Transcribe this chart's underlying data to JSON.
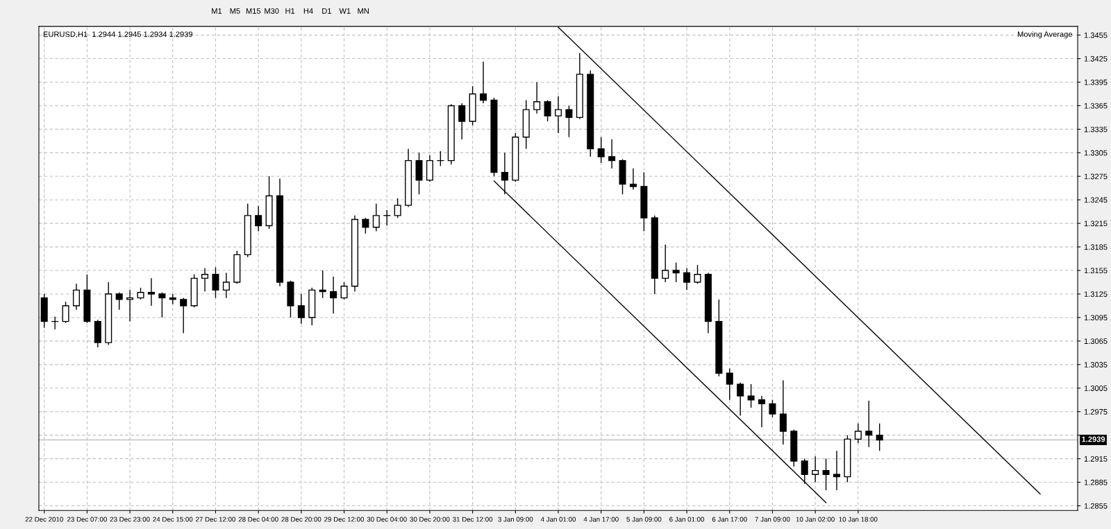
{
  "chart_data": {
    "type": "candlestick",
    "title": "EURUSD,H1  1.2944 1.2945 1.2934 1.2939",
    "annotations": [
      "Moving Average",
      "M1",
      "M5",
      "M15",
      "M30",
      "H1",
      "H4",
      "D1",
      "W1",
      "MN"
    ],
    "categories": [
      "22 Dec 2010",
      null,
      null,
      null,
      "23 Dec 07:00",
      null,
      null,
      null,
      "23 Dec 23:00",
      null,
      null,
      null,
      "24 Dec 15:00",
      null,
      null,
      null,
      "27 Dec 12:00",
      null,
      null,
      null,
      "28 Dec 04:00",
      null,
      null,
      null,
      "28 Dec 20:00",
      null,
      null,
      null,
      "29 Dec 12:00",
      null,
      null,
      null,
      "30 Dec 04:00",
      null,
      null,
      null,
      "30 Dec 20:00",
      null,
      null,
      null,
      "31 Dec 12:00",
      null,
      null,
      null,
      "3 Jan 09:00",
      null,
      null,
      null,
      "4 Jan 01:00",
      null,
      null,
      null,
      "4 Jan 17:00",
      null,
      null,
      null,
      "5 Jan 09:00",
      null,
      null,
      null,
      "6 Jan 01:00",
      null,
      null,
      null,
      "6 Jan 17:00",
      null,
      null,
      null,
      "7 Jan 09:00",
      null,
      null,
      null,
      "10 Jan 02:00",
      null,
      null,
      null,
      "10 Jan 18:00",
      null,
      null,
      null,
      null,
      null,
      null,
      null,
      null,
      null,
      null,
      null,
      null,
      null,
      null,
      null,
      null,
      null,
      null,
      null,
      null
    ],
    "series": [
      {
        "color": "#000000",
        "ohlc": [
          [
            1.312,
            1.3125,
            1.3082,
            1.309
          ],
          [
            1.309,
            1.3096,
            1.308,
            1.309
          ],
          [
            1.309,
            1.3115,
            1.3088,
            1.311
          ],
          [
            1.311,
            1.3138,
            1.3105,
            1.313
          ],
          [
            1.313,
            1.315,
            1.3088,
            1.309
          ],
          [
            1.309,
            1.3092,
            1.3057,
            1.3063
          ],
          [
            1.3063,
            1.314,
            1.306,
            1.3125
          ],
          [
            1.3125,
            1.3127,
            1.3105,
            1.3118
          ],
          [
            1.3118,
            1.313,
            1.309,
            1.312
          ],
          [
            1.312,
            1.3133,
            1.3118,
            1.3127
          ],
          [
            1.3127,
            1.3145,
            1.311,
            1.3125
          ],
          [
            1.3125,
            1.3127,
            1.3095,
            1.312
          ],
          [
            1.312,
            1.3125,
            1.3112,
            1.3118
          ],
          [
            1.3118,
            1.312,
            1.3075,
            1.311
          ],
          [
            1.311,
            1.315,
            1.3108,
            1.3145
          ],
          [
            1.3145,
            1.3158,
            1.3128,
            1.315
          ],
          [
            1.315,
            1.3159,
            1.312,
            1.313
          ],
          [
            1.313,
            1.3152,
            1.312,
            1.314
          ],
          [
            1.314,
            1.318,
            1.3138,
            1.3175
          ],
          [
            1.3175,
            1.324,
            1.3172,
            1.3225
          ],
          [
            1.3225,
            1.3237,
            1.3205,
            1.3212
          ],
          [
            1.3212,
            1.3275,
            1.3208,
            1.325
          ],
          [
            1.325,
            1.3272,
            1.3135,
            1.314
          ],
          [
            1.314,
            1.3142,
            1.3095,
            1.311
          ],
          [
            1.311,
            1.3125,
            1.3087,
            1.3095
          ],
          [
            1.3095,
            1.3133,
            1.3085,
            1.313
          ],
          [
            1.313,
            1.3155,
            1.312,
            1.3128
          ],
          [
            1.3128,
            1.3147,
            1.31,
            1.312
          ],
          [
            1.312,
            1.314,
            1.3118,
            1.3135
          ],
          [
            1.3135,
            1.3225,
            1.3128,
            1.322
          ],
          [
            1.322,
            1.3222,
            1.3202,
            1.321
          ],
          [
            1.321,
            1.324,
            1.3205,
            1.3225
          ],
          [
            1.3225,
            1.3232,
            1.3212,
            1.3225
          ],
          [
            1.3225,
            1.3247,
            1.3222,
            1.3238
          ],
          [
            1.3238,
            1.331,
            1.3236,
            1.3295
          ],
          [
            1.3295,
            1.3305,
            1.3252,
            1.327
          ],
          [
            1.327,
            1.3302,
            1.3268,
            1.3295
          ],
          [
            1.3295,
            1.3307,
            1.3288,
            1.3295
          ],
          [
            1.3295,
            1.3367,
            1.329,
            1.3365
          ],
          [
            1.3365,
            1.3368,
            1.3322,
            1.3345
          ],
          [
            1.3345,
            1.339,
            1.334,
            1.338
          ],
          [
            1.338,
            1.3421,
            1.3368,
            1.3372
          ],
          [
            1.3372,
            1.3375,
            1.3275,
            1.328
          ],
          [
            1.328,
            1.3305,
            1.3252,
            1.327
          ],
          [
            1.327,
            1.333,
            1.3268,
            1.3325
          ],
          [
            1.3325,
            1.3372,
            1.331,
            1.336
          ],
          [
            1.336,
            1.3395,
            1.3355,
            1.337
          ],
          [
            1.337,
            1.3372,
            1.3345,
            1.3352
          ],
          [
            1.3352,
            1.3377,
            1.333,
            1.336
          ],
          [
            1.336,
            1.3365,
            1.3325,
            1.335
          ],
          [
            1.335,
            1.3432,
            1.3348,
            1.3405
          ],
          [
            1.3405,
            1.341,
            1.33,
            1.331
          ],
          [
            1.331,
            1.3325,
            1.3292,
            1.33
          ],
          [
            1.33,
            1.3322,
            1.3285,
            1.3295
          ],
          [
            1.3295,
            1.3297,
            1.3252,
            1.3265
          ],
          [
            1.3265,
            1.3285,
            1.3258,
            1.3262
          ],
          [
            1.3262,
            1.328,
            1.3205,
            1.3222
          ],
          [
            1.3222,
            1.3225,
            1.3125,
            1.3145
          ],
          [
            1.3145,
            1.3188,
            1.314,
            1.3155
          ],
          [
            1.3155,
            1.3165,
            1.314,
            1.3152
          ],
          [
            1.3152,
            1.3158,
            1.313,
            1.314
          ],
          [
            1.314,
            1.3162,
            1.3138,
            1.315
          ],
          [
            1.315,
            1.3152,
            1.3075,
            1.309
          ],
          [
            1.309,
            1.3118,
            1.302,
            1.3024
          ],
          [
            1.3024,
            1.303,
            1.299,
            1.301
          ],
          [
            1.301,
            1.3012,
            1.297,
            1.2995
          ],
          [
            1.2995,
            1.301,
            1.298,
            1.299
          ],
          [
            1.299,
            1.2995,
            1.2955,
            1.2985
          ],
          [
            1.2985,
            1.299,
            1.2968,
            1.2972
          ],
          [
            1.2972,
            1.3015,
            1.2933,
            1.295
          ],
          [
            1.295,
            1.2952,
            1.2905,
            1.2912
          ],
          [
            1.2912,
            1.2915,
            1.2883,
            1.2895
          ],
          [
            1.2895,
            1.2918,
            1.2885,
            1.29
          ],
          [
            1.29,
            1.2915,
            1.2875,
            1.2895
          ],
          [
            1.2895,
            1.2925,
            1.2875,
            1.2892
          ],
          [
            1.2892,
            1.2945,
            1.2885,
            1.294
          ],
          [
            1.294,
            1.296,
            1.2935,
            1.295
          ],
          [
            1.295,
            1.2989,
            1.293,
            1.2945
          ],
          [
            1.2945,
            1.296,
            1.2925,
            1.2939
          ],
          null,
          null,
          null,
          null,
          null,
          null,
          null,
          null,
          null,
          null,
          null,
          null,
          null,
          null,
          null,
          null,
          null,
          null
        ]
      },
      {
        "type": "line",
        "color": "#000000",
        "values": [
          null,
          null,
          null,
          null,
          null,
          null,
          null,
          null,
          null,
          null,
          null,
          null,
          null,
          null,
          null,
          null,
          null,
          null,
          null,
          null,
          null,
          null,
          null,
          null,
          null,
          null,
          null,
          null,
          null,
          null,
          null,
          null,
          null,
          null,
          null,
          null,
          null,
          null,
          null,
          null,
          null,
          null,
          null,
          null,
          null,
          null,
          null,
          null,
          1.3465,
          null,
          null,
          null,
          null,
          null,
          null,
          null,
          null,
          null,
          null,
          null,
          null,
          null,
          null,
          null,
          null,
          null,
          null,
          null,
          null,
          null,
          null,
          null,
          null,
          null,
          null,
          null,
          null,
          null,
          null,
          null,
          null,
          null,
          null,
          null,
          null,
          null,
          null,
          null,
          null,
          null,
          null,
          null,
          null,
          1.287,
          null,
          null,
          null
        ]
      },
      {
        "type": "line",
        "color": "#000000",
        "values": [
          null,
          null,
          null,
          null,
          null,
          null,
          null,
          null,
          null,
          null,
          null,
          null,
          null,
          null,
          null,
          null,
          null,
          null,
          null,
          null,
          null,
          null,
          null,
          null,
          null,
          null,
          null,
          null,
          null,
          null,
          null,
          null,
          null,
          null,
          null,
          null,
          null,
          null,
          null,
          null,
          null,
          null,
          1.3269,
          null,
          null,
          null,
          null,
          null,
          null,
          null,
          null,
          null,
          null,
          null,
          null,
          null,
          null,
          null,
          null,
          null,
          null,
          null,
          null,
          null,
          null,
          null,
          null,
          null,
          null,
          null,
          null,
          null,
          null,
          1.2859,
          null,
          null,
          null,
          null,
          null,
          null,
          null,
          null,
          null,
          null,
          null,
          null,
          null,
          null,
          null,
          null,
          null,
          null,
          null,
          null,
          null,
          null,
          null
        ]
      }
    ],
    "ylim": [
      1.2849,
      1.3466
    ],
    "yticks": [
      1.2855,
      1.2885,
      1.2915,
      {
        "value": 1.2945,
        "label": null
      },
      1.2975,
      1.3005,
      1.3035,
      1.3065,
      1.3095,
      1.3125,
      1.3155,
      1.3185,
      1.3215,
      1.3245,
      1.3275,
      1.3305,
      1.3335,
      1.3365,
      1.3395,
      1.3425,
      1.3455
    ],
    "ref_lines": [
      {
        "axis": "y",
        "value": 1.2939,
        "label": "1.2939",
        "color": "#c0c0c0"
      }
    ],
    "grid": true,
    "line_style": "solid"
  }
}
